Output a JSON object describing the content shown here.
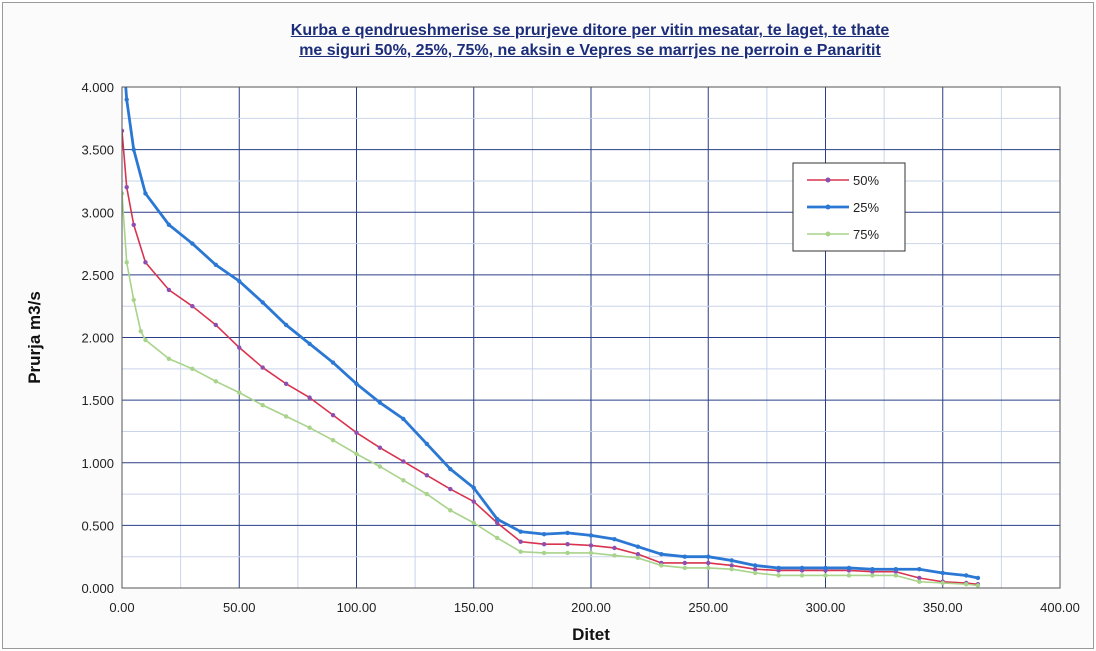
{
  "chart_data": {
    "type": "line",
    "title_line1": "Kurba e qendrueshmerise se prurjeve ditore per vitin mesatar, te laget, te thate",
    "title_line2": "me siguri  50%, 25%, 75%, ne aksin e Vepres  se marrjes ne perroin e Panaritit",
    "xlabel": "Ditet",
    "ylabel": "Prurja m3/s",
    "xlim": [
      0,
      400
    ],
    "ylim": [
      0,
      4
    ],
    "xticks": [
      0,
      50,
      100,
      150,
      200,
      250,
      300,
      350,
      400
    ],
    "xtick_labels": [
      "0.00",
      "50.00",
      "100.00",
      "150.00",
      "200.00",
      "250.00",
      "300.00",
      "350.00",
      "400.00"
    ],
    "yticks": [
      0,
      0.5,
      1,
      1.5,
      2,
      2.5,
      3,
      3.5,
      4
    ],
    "ytick_labels": [
      "0.000",
      "0.500",
      "1.000",
      "1.500",
      "2.000",
      "2.500",
      "3.000",
      "3.500",
      "4.000"
    ],
    "grid": true,
    "legend_position": "top-right",
    "series": [
      {
        "name": "50%",
        "color": "#d9334e",
        "marker_color": "#8a4fb0",
        "x": [
          0,
          2,
          5,
          10,
          20,
          30,
          40,
          50,
          60,
          70,
          80,
          90,
          100,
          110,
          120,
          130,
          140,
          150,
          160,
          170,
          180,
          190,
          200,
          210,
          220,
          230,
          240,
          250,
          260,
          270,
          280,
          290,
          300,
          310,
          320,
          330,
          340,
          350,
          360,
          365
        ],
        "y": [
          3.65,
          3.2,
          2.9,
          2.6,
          2.38,
          2.25,
          2.1,
          1.92,
          1.76,
          1.63,
          1.52,
          1.38,
          1.24,
          1.12,
          1.01,
          0.9,
          0.79,
          0.69,
          0.52,
          0.37,
          0.35,
          0.35,
          0.34,
          0.32,
          0.27,
          0.2,
          0.2,
          0.2,
          0.18,
          0.15,
          0.14,
          0.14,
          0.14,
          0.14,
          0.13,
          0.13,
          0.08,
          0.05,
          0.04,
          0.03
        ]
      },
      {
        "name": "25%",
        "color": "#2b78d4",
        "marker_color": "#2b78d4",
        "x": [
          0,
          2,
          5,
          10,
          20,
          30,
          40,
          50,
          60,
          70,
          80,
          90,
          100,
          110,
          120,
          130,
          140,
          150,
          160,
          170,
          180,
          190,
          200,
          210,
          220,
          230,
          240,
          250,
          260,
          270,
          280,
          290,
          300,
          310,
          320,
          330,
          340,
          350,
          360,
          365
        ],
        "y": [
          4.4,
          3.9,
          3.5,
          3.15,
          2.9,
          2.75,
          2.58,
          2.45,
          2.28,
          2.1,
          1.95,
          1.8,
          1.63,
          1.48,
          1.35,
          1.15,
          0.95,
          0.8,
          0.55,
          0.45,
          0.43,
          0.44,
          0.42,
          0.39,
          0.33,
          0.27,
          0.25,
          0.25,
          0.22,
          0.18,
          0.16,
          0.16,
          0.16,
          0.16,
          0.15,
          0.15,
          0.15,
          0.12,
          0.1,
          0.08
        ]
      },
      {
        "name": "75%",
        "color": "#a8d38a",
        "marker_color": "#a8d38a",
        "x": [
          0,
          2,
          5,
          8,
          10,
          20,
          30,
          40,
          50,
          60,
          70,
          80,
          90,
          100,
          110,
          120,
          130,
          140,
          150,
          160,
          170,
          180,
          190,
          200,
          210,
          220,
          230,
          240,
          250,
          260,
          270,
          280,
          290,
          300,
          310,
          320,
          330,
          340,
          350,
          360,
          365
        ],
        "y": [
          3.15,
          2.6,
          2.3,
          2.05,
          1.98,
          1.83,
          1.75,
          1.65,
          1.56,
          1.46,
          1.37,
          1.28,
          1.18,
          1.07,
          0.97,
          0.86,
          0.75,
          0.62,
          0.52,
          0.4,
          0.29,
          0.28,
          0.28,
          0.28,
          0.26,
          0.24,
          0.18,
          0.16,
          0.16,
          0.15,
          0.12,
          0.1,
          0.1,
          0.1,
          0.1,
          0.1,
          0.1,
          0.05,
          0.04,
          0.03,
          0.02
        ]
      }
    ]
  }
}
